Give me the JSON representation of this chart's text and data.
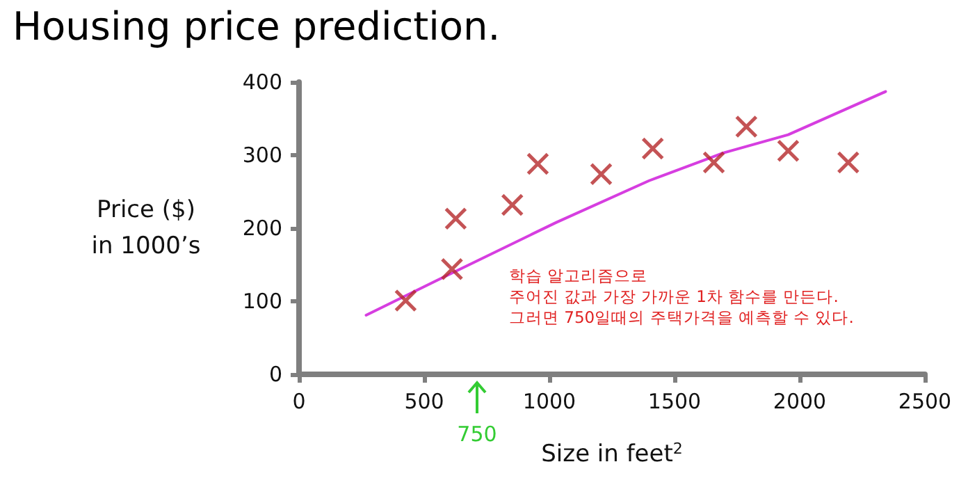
{
  "chart_data": {
    "type": "scatter",
    "title": "Housing price prediction.",
    "xlabel": "Size in feet$^{2}$",
    "ylabel": "Price ($)\nin 1000’s",
    "xlim": [
      0,
      2500
    ],
    "xticks": [
      0,
      500,
      1000,
      1500,
      2000,
      2500
    ],
    "ylim": [
      0,
      400
    ],
    "yticks": [
      0,
      100,
      200,
      300,
      400
    ],
    "series": [
      {
        "color": "#b5282b",
        "marker": "cross",
        "x": [
          426,
          611,
          626,
          852,
          954,
          1207,
          1413,
          1657,
          1787,
          1954,
          2194
        ],
        "values": [
          101,
          144,
          213,
          232,
          288,
          274,
          309,
          290,
          339,
          306,
          290
        ]
      },
      {
        "type": "line",
        "color": "#d63ee0",
        "marker": "none",
        "x": [
          268,
          565,
          1028,
          1398,
          1694,
          1954,
          2343
        ],
        "values": [
          81,
          131,
          208,
          265,
          303,
          328,
          387
        ]
      }
    ],
    "annotations": [
      "750",
      "학습 알고리즘으로\n주어진 값과 가장 가까운 1차 함수를 만든다.\n그러면 750일때의 주택가격을 예측할 수 있다."
    ]
  }
}
